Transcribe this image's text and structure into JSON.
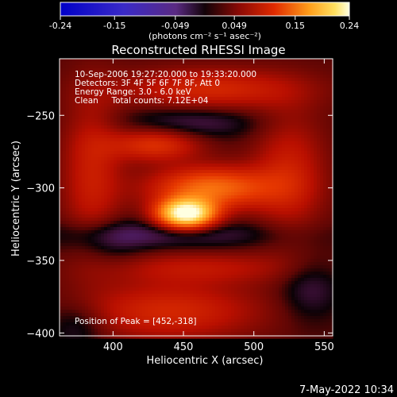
{
  "chart_data": {
    "type": "heatmap",
    "title": "Reconstructed RHESSI Image",
    "colorbar": {
      "ticks": [
        "-0.24",
        "-0.15",
        "-0.049",
        "0.049",
        "0.15",
        "0.24"
      ],
      "range": [
        -0.24,
        0.24
      ],
      "unit_label": "(photons cm⁻² s⁻¹ asec⁻²)"
    },
    "info_lines": [
      "10-Sep-2006 19:27:20.000 to 19:33:20.000",
      "Detectors: 3F 4F 5F 6F 7F 8F, Att 0",
      "Energy Range: 3.0 - 6.0 keV",
      "Clean     Total counts: 7.12E+04"
    ],
    "peak_label": "Position of Peak = [452,-318]",
    "xlabel": "Heliocentric X (arcsec)",
    "ylabel": "Heliocentric Y (arcsec)",
    "xlim": [
      362,
      556
    ],
    "ylim": [
      -402,
      -211
    ],
    "xticks": [
      400,
      450,
      500,
      550
    ],
    "yticks": [
      -250,
      -300,
      -350,
      -400
    ],
    "xtick_labels": [
      "400",
      "450",
      "500",
      "550"
    ],
    "ytick_labels": [
      "−250",
      "−300",
      "−350",
      "−400"
    ],
    "peak": {
      "x": 452,
      "y": -318,
      "value": 0.24
    },
    "features": [
      {
        "x": 452,
        "y": -318,
        "sx": 14,
        "sy": 7,
        "value": 0.24
      },
      {
        "x": 470,
        "y": -300,
        "sx": 30,
        "sy": 10,
        "value": 0.11
      },
      {
        "x": 430,
        "y": -270,
        "sx": 22,
        "sy": 8,
        "value": 0.07
      },
      {
        "x": 470,
        "y": -232,
        "sx": 45,
        "sy": 10,
        "value": 0.06
      },
      {
        "x": 525,
        "y": -290,
        "sx": 18,
        "sy": 30,
        "value": 0.05
      },
      {
        "x": 385,
        "y": -290,
        "sx": 15,
        "sy": 40,
        "value": 0.05
      },
      {
        "x": 440,
        "y": -385,
        "sx": 45,
        "sy": 14,
        "value": 0.06
      },
      {
        "x": 460,
        "y": -355,
        "sx": 50,
        "sy": 8,
        "value": 0.04
      },
      {
        "x": 455,
        "y": -255,
        "sx": 35,
        "sy": 8,
        "value": -0.035
      },
      {
        "x": 440,
        "y": -332,
        "sx": 60,
        "sy": 7,
        "value": -0.035
      },
      {
        "x": 395,
        "y": -340,
        "sx": 18,
        "sy": 12,
        "value": -0.025
      },
      {
        "x": 540,
        "y": -370,
        "sx": 15,
        "sy": 15,
        "value": -0.03
      },
      {
        "x": 375,
        "y": -395,
        "sx": 15,
        "sy": 12,
        "value": -0.03
      }
    ]
  },
  "footer": {
    "timestamp": "7-May-2022 10:34"
  }
}
